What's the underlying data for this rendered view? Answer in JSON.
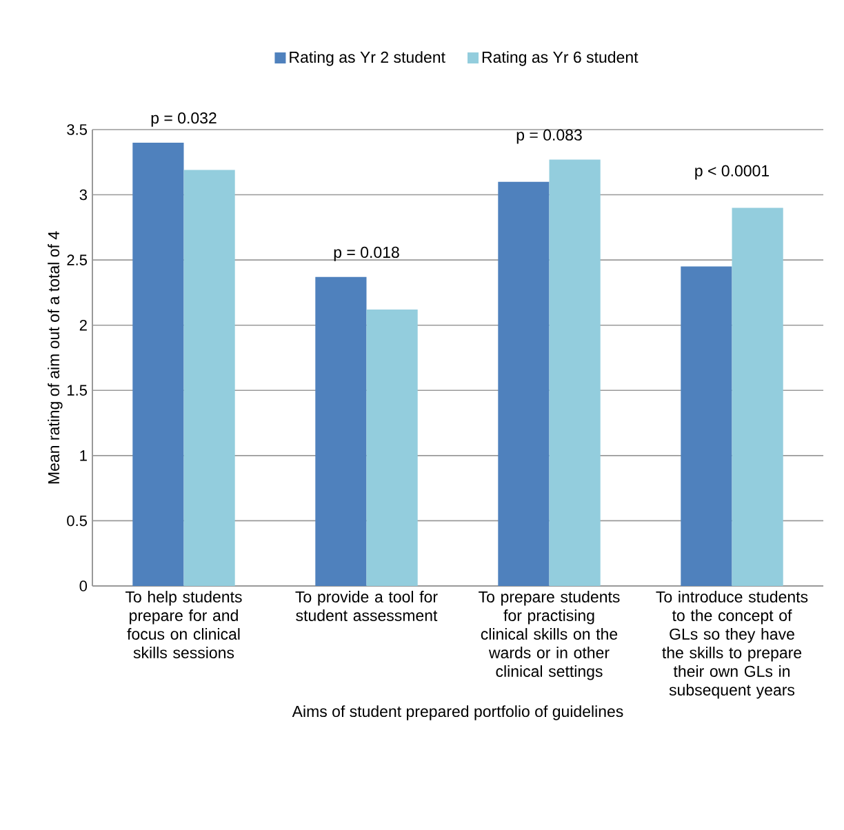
{
  "chart_data": {
    "type": "bar",
    "xlabel": "Aims of student prepared portfolio of guidelines",
    "ylabel": "Mean rating of aim out of a total of 4",
    "categories": [
      "To help students prepare for and focus on clinical skills sessions",
      "To provide a tool for student assessment",
      "To prepare students for practising clinical skills on the wards or in other clinical settings",
      "To introduce students to the concept of GLs so they have the skills to prepare their own GLs in subsequent years"
    ],
    "series": [
      {
        "name": "Rating  as Yr 2 student",
        "color": "#4f81bd",
        "values": [
          3.4,
          2.37,
          3.1,
          2.45
        ]
      },
      {
        "name": "Rating  as Yr 6 student",
        "color": "#93cddd",
        "values": [
          3.19,
          2.12,
          3.27,
          2.9
        ]
      }
    ],
    "ylim": [
      0,
      3.5
    ],
    "yticks": [
      0,
      {
        "value": 0.5,
        "label": "0.5"
      },
      1,
      {
        "value": 1.5,
        "label": "1.5"
      },
      2,
      {
        "value": 2.5,
        "label": "2.5"
      },
      3,
      {
        "value": 3.5,
        "label": "3.5"
      }
    ],
    "grid": "y",
    "legend": "top",
    "annotations": [
      {
        "text": "p = 0.032",
        "x": "To help students prepare for and focus on clinical skills sessions",
        "y": 3.4
      },
      {
        "text": "p = 0.018",
        "x": "To provide a tool for student assessment",
        "y": 2.37
      },
      {
        "text": "p = 0.083",
        "x": "To prepare students for practising clinical skills on the wards or in other clinical settings",
        "y": 3.27
      },
      "p < 0.0001"
    ]
  }
}
